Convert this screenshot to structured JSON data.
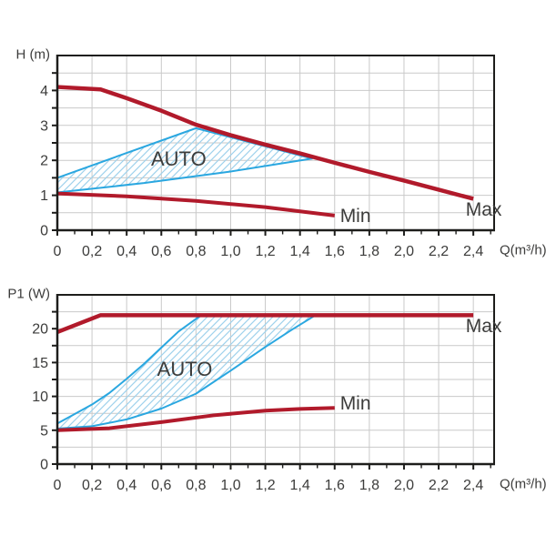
{
  "page": {
    "background": "#ffffff"
  },
  "colors": {
    "curve_red": "#b11a2b",
    "auto_blue": "#2aa7e0",
    "hatch_blue": "#9fd2ec",
    "grid": "#c9c9c9",
    "axis": "#1d1d1b",
    "text": "#3c3c3b"
  },
  "chart_data": [
    {
      "type": "line",
      "ylabel": "H (m)",
      "xlabel": "Q(m³/h)",
      "x_range": [
        0,
        2.52
      ],
      "y_range": [
        0,
        5
      ],
      "x_grid_step": 0.2,
      "y_grid_step": 0.5,
      "x_tick_step": 0.1,
      "y_minor_step": 0.5,
      "x_tick_labels": [
        {
          "v": 0,
          "label": "0"
        },
        {
          "v": 0.2,
          "label": "0,2"
        },
        {
          "v": 0.4,
          "label": "0,4"
        },
        {
          "v": 0.6,
          "label": "0,6"
        },
        {
          "v": 0.8,
          "label": "0,8"
        },
        {
          "v": 1.0,
          "label": "1,0"
        },
        {
          "v": 1.2,
          "label": "1,2"
        },
        {
          "v": 1.4,
          "label": "1,4"
        },
        {
          "v": 1.6,
          "label": "1,6"
        },
        {
          "v": 1.8,
          "label": "1,8"
        },
        {
          "v": 2.0,
          "label": "2,0"
        },
        {
          "v": 2.2,
          "label": "2,2"
        },
        {
          "v": 2.4,
          "label": "2,4"
        }
      ],
      "y_tick_labels": [
        {
          "v": 0,
          "label": "0"
        },
        {
          "v": 1,
          "label": "1"
        },
        {
          "v": 2,
          "label": "2"
        },
        {
          "v": 3,
          "label": "3"
        },
        {
          "v": 4,
          "label": "4"
        }
      ],
      "series": [
        {
          "name": "Max",
          "color": "curve_red",
          "width": 4.5,
          "points": [
            [
              0,
              4.1
            ],
            [
              0.25,
              4.03
            ],
            [
              0.4,
              3.78
            ],
            [
              0.6,
              3.42
            ],
            [
              0.8,
              3.02
            ],
            [
              1.0,
              2.72
            ],
            [
              1.2,
              2.45
            ],
            [
              1.4,
              2.2
            ],
            [
              1.6,
              1.93
            ],
            [
              1.8,
              1.67
            ],
            [
              2.0,
              1.42
            ],
            [
              2.2,
              1.16
            ],
            [
              2.4,
              0.9
            ]
          ]
        },
        {
          "name": "Min",
          "color": "curve_red",
          "width": 4,
          "points": [
            [
              0,
              1.05
            ],
            [
              0.4,
              0.97
            ],
            [
              0.8,
              0.84
            ],
            [
              1.2,
              0.66
            ],
            [
              1.6,
              0.42
            ]
          ]
        }
      ],
      "auto_region": {
        "upper": [
          [
            0,
            1.5
          ],
          [
            0.8,
            2.92
          ],
          [
            1.47,
            2.05
          ]
        ],
        "lower": [
          [
            0,
            1.08
          ],
          [
            0.5,
            1.35
          ],
          [
            1.0,
            1.68
          ],
          [
            1.47,
            2.05
          ]
        ]
      },
      "annotations": [
        {
          "text": "AUTO",
          "x": 0.7,
          "y": 2.02,
          "size": 22
        },
        {
          "text": "Max",
          "x": 2.46,
          "y": 0.57,
          "size": 21
        },
        {
          "text": "Min",
          "x": 1.72,
          "y": 0.4,
          "size": 21
        }
      ]
    },
    {
      "type": "line",
      "ylabel": "P1 (W)",
      "xlabel": "Q(m³/h)",
      "x_range": [
        0,
        2.52
      ],
      "y_range": [
        0,
        25
      ],
      "x_grid_step": 0.2,
      "y_grid_step": 2.5,
      "x_tick_step": 0.1,
      "y_minor_step": 2.5,
      "x_tick_labels": [
        {
          "v": 0,
          "label": "0"
        },
        {
          "v": 0.2,
          "label": "0,2"
        },
        {
          "v": 0.4,
          "label": "0,4"
        },
        {
          "v": 0.6,
          "label": "0,6"
        },
        {
          "v": 0.8,
          "label": "0,8"
        },
        {
          "v": 1.0,
          "label": "1,0"
        },
        {
          "v": 1.2,
          "label": "1,2"
        },
        {
          "v": 1.4,
          "label": "1,4"
        },
        {
          "v": 1.6,
          "label": "1,6"
        },
        {
          "v": 1.8,
          "label": "1,8"
        },
        {
          "v": 2.0,
          "label": "2,0"
        },
        {
          "v": 2.2,
          "label": "2,2"
        },
        {
          "v": 2.4,
          "label": "2,4"
        }
      ],
      "y_tick_labels": [
        {
          "v": 0,
          "label": "0"
        },
        {
          "v": 5,
          "label": "5"
        },
        {
          "v": 10,
          "label": "10"
        },
        {
          "v": 15,
          "label": "15"
        },
        {
          "v": 20,
          "label": "20"
        }
      ],
      "series": [
        {
          "name": "Max",
          "color": "curve_red",
          "width": 4.5,
          "points": [
            [
              0,
              19.5
            ],
            [
              0.25,
              22
            ],
            [
              2.4,
              22
            ]
          ]
        },
        {
          "name": "Min",
          "color": "curve_red",
          "width": 4,
          "points": [
            [
              0,
              5
            ],
            [
              0.3,
              5.3
            ],
            [
              0.6,
              6.2
            ],
            [
              0.9,
              7.2
            ],
            [
              1.2,
              7.9
            ],
            [
              1.4,
              8.15
            ],
            [
              1.6,
              8.3
            ]
          ]
        }
      ],
      "auto_region": {
        "upper": [
          [
            0,
            6
          ],
          [
            0.1,
            7.4
          ],
          [
            0.2,
            8.8
          ],
          [
            0.3,
            10.5
          ],
          [
            0.4,
            12.6
          ],
          [
            0.5,
            14.8
          ],
          [
            0.6,
            17.2
          ],
          [
            0.7,
            19.6
          ],
          [
            0.83,
            22
          ],
          [
            1.49,
            22
          ]
        ],
        "lower": [
          [
            0,
            5.25
          ],
          [
            0.2,
            5.6
          ],
          [
            0.4,
            6.6
          ],
          [
            0.6,
            8.2
          ],
          [
            0.8,
            10.4
          ],
          [
            1.0,
            13.8
          ],
          [
            1.2,
            17.3
          ],
          [
            1.35,
            19.8
          ],
          [
            1.49,
            22
          ]
        ]
      },
      "annotations": [
        {
          "text": "AUTO",
          "x": 0.735,
          "y": 14.0,
          "size": 22
        },
        {
          "text": "Max",
          "x": 2.46,
          "y": 20.3,
          "size": 21
        },
        {
          "text": "Min",
          "x": 1.72,
          "y": 8.9,
          "size": 21
        }
      ]
    }
  ]
}
